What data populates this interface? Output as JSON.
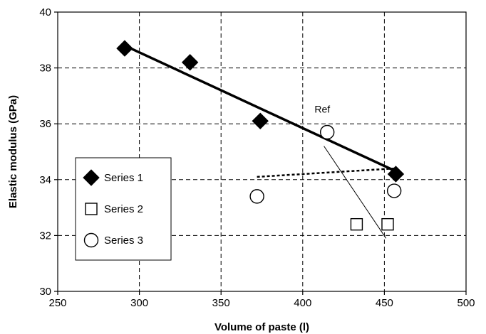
{
  "chart_data": {
    "type": "scatter",
    "xlabel": "Volume of paste (l)",
    "ylabel": "Elastic modulus (GPa)",
    "xlim": [
      250,
      500
    ],
    "ylim": [
      30,
      40
    ],
    "xticks": [
      250,
      300,
      350,
      400,
      450,
      500
    ],
    "yticks": [
      30,
      32,
      34,
      36,
      38,
      40
    ],
    "grid": true,
    "legend_position": "left",
    "series": [
      {
        "name": "Series 1",
        "marker": "diamond-filled",
        "color": "#000000",
        "points": [
          [
            291,
            38.7
          ],
          [
            331,
            38.2
          ],
          [
            374,
            36.1
          ],
          [
            457,
            34.2
          ]
        ]
      },
      {
        "name": "Series 2",
        "marker": "square-open",
        "color": "#000000",
        "points": [
          [
            433,
            32.4
          ],
          [
            452,
            32.4
          ]
        ]
      },
      {
        "name": "Series 3",
        "marker": "circle-open",
        "color": "#000000",
        "points": [
          [
            372,
            33.4
          ],
          [
            415,
            35.7
          ],
          [
            456,
            33.6
          ]
        ]
      }
    ],
    "lines": [
      {
        "style": "solid-thick",
        "from": [
          291,
          38.8
        ],
        "to": [
          457,
          34.3
        ]
      },
      {
        "style": "dotted-thick",
        "from": [
          372,
          34.1
        ],
        "to": [
          456,
          34.4
        ]
      },
      {
        "style": "solid-thin",
        "from": [
          413,
          35.2
        ],
        "to": [
          451,
          31.9
        ]
      }
    ],
    "annotations": [
      {
        "text": "Ref",
        "x": 412,
        "y": 36.4
      }
    ]
  }
}
